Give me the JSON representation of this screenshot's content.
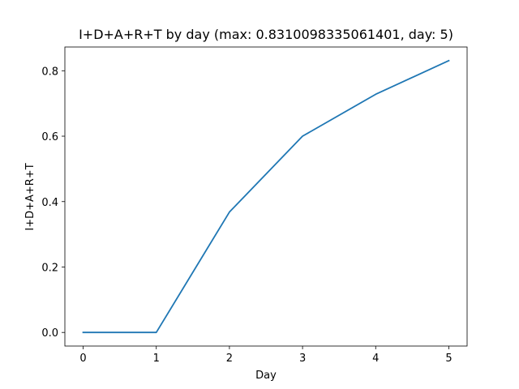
{
  "chart_data": {
    "type": "line",
    "title": "I+D+A+R+T by day (max: 0.8310098335061401, day: 5)",
    "xlabel": "Day",
    "ylabel": "I+D+A+R+T",
    "x": [
      0,
      1,
      2,
      3,
      4,
      5
    ],
    "series": [
      {
        "values": [
          0.0,
          0.0,
          0.368,
          0.6,
          0.728,
          0.8310098335061401
        ],
        "color": "#1f77b4"
      }
    ],
    "xlim": [
      -0.25,
      5.25
    ],
    "ylim": [
      -0.0416,
      0.8726
    ],
    "xticks": [
      0,
      1,
      2,
      3,
      4,
      5
    ],
    "xtick_labels": [
      "0",
      "1",
      "2",
      "3",
      "4",
      "5"
    ],
    "yticks": [
      0.0,
      0.2,
      0.4,
      0.6,
      0.8
    ],
    "ytick_labels": [
      "0.0",
      "0.2",
      "0.4",
      "0.6",
      "0.8"
    ],
    "grid": false,
    "legend": false
  }
}
